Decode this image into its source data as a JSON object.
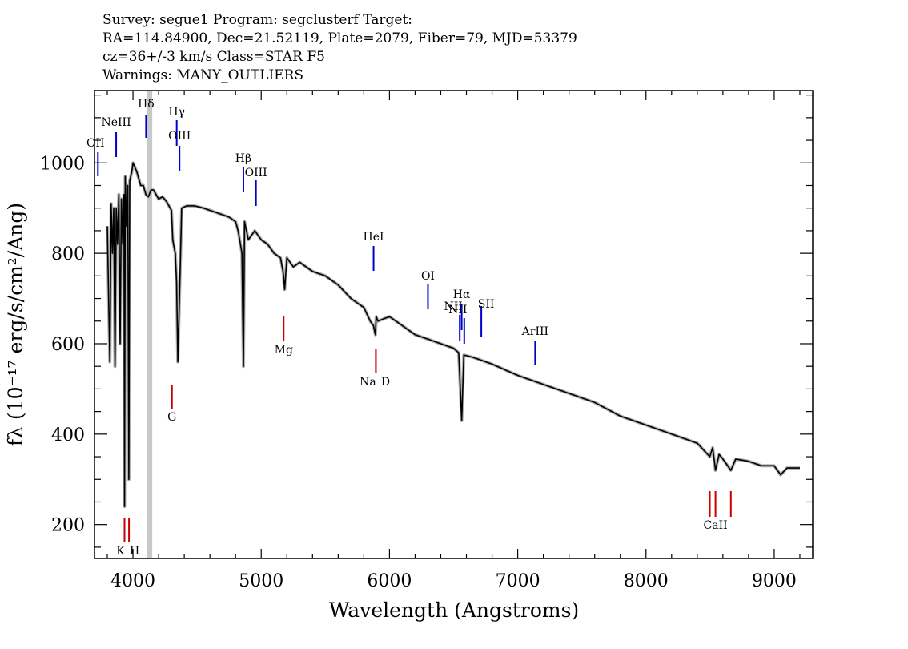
{
  "header": {
    "line1": "Survey: segue1  Program: segclusterf  Target:",
    "line2": "RA=114.84900, Dec=21.52119, Plate=2079, Fiber=79, MJD=53379",
    "line3": "cz=36+/-3  km/s  Class=STAR F5",
    "line4": "Warnings: MANY_OUTLIERS"
  },
  "chart_data": {
    "type": "line",
    "title": "",
    "xlabel": "Wavelength (Angstroms)",
    "ylabel": "fλ (10⁻¹⁷ erg/s/cm²/Ang)",
    "xlim": [
      3700,
      9300
    ],
    "ylim": [
      125,
      1160
    ],
    "x_ticks": [
      4000,
      5000,
      6000,
      7000,
      8000,
      9000
    ],
    "y_ticks": [
      200,
      400,
      600,
      800,
      1000
    ],
    "grid": false,
    "legend": "none",
    "colors": {
      "spectrum": "#000000",
      "error_band": "#b0b0b0",
      "emission_line": "#0000cc",
      "absorption_line": "#cc0000",
      "masked_region": "#c8c8c8"
    },
    "masked_region": [
      4110,
      4150
    ],
    "series": [
      {
        "x": [
          3800,
          3820,
          3830,
          3840,
          3850,
          3860,
          3870,
          3880,
          3890,
          3900,
          3910,
          3920,
          3930,
          3934,
          3940,
          3950,
          3960,
          3968,
          3975,
          3990,
          4000,
          4030,
          4060,
          4080,
          4101,
          4120,
          4140,
          4160,
          4180,
          4200,
          4230,
          4260,
          4300,
          4310,
          4330,
          4340,
          4350,
          4380,
          4420,
          4480,
          4550,
          4650,
          4750,
          4800,
          4820,
          4850,
          4861,
          4870,
          4900,
          4950,
          5000,
          5050,
          5100,
          5150,
          5170,
          5183,
          5200,
          5250,
          5300,
          5400,
          5500,
          5600,
          5700,
          5800,
          5850,
          5875,
          5890,
          5896,
          5910,
          6000,
          6100,
          6200,
          6300,
          6400,
          6500,
          6540,
          6563,
          6580,
          6650,
          6800,
          7000,
          7200,
          7400,
          7600,
          7800,
          8000,
          8200,
          8400,
          8498,
          8520,
          8542,
          8570,
          8600,
          8662,
          8700,
          8800,
          8900,
          9000,
          9050,
          9100,
          9200
        ],
        "y": [
          860,
          560,
          910,
          800,
          900,
          550,
          900,
          820,
          930,
          600,
          920,
          820,
          930,
          240,
          970,
          860,
          950,
          300,
          960,
          980,
          1000,
          980,
          950,
          950,
          930,
          925,
          940,
          940,
          930,
          920,
          925,
          915,
          895,
          830,
          800,
          735,
          560,
          900,
          905,
          905,
          900,
          890,
          880,
          870,
          850,
          800,
          550,
          870,
          830,
          850,
          830,
          820,
          800,
          790,
          760,
          720,
          790,
          770,
          780,
          760,
          750,
          730,
          700,
          680,
          650,
          640,
          620,
          660,
          650,
          660,
          640,
          620,
          610,
          600,
          590,
          580,
          430,
          575,
          570,
          555,
          530,
          510,
          490,
          470,
          440,
          420,
          400,
          380,
          350,
          370,
          320,
          355,
          345,
          320,
          345,
          340,
          330,
          330,
          310,
          325,
          325
        ]
      }
    ],
    "line_labels": [
      {
        "label": "OII",
        "x": 3727,
        "color": "blue"
      },
      {
        "label": "NeIII",
        "x": 3869,
        "color": "blue"
      },
      {
        "label": "Hδ",
        "x": 4102,
        "color": "blue"
      },
      {
        "label": "Hγ",
        "x": 4341,
        "color": "blue"
      },
      {
        "label": "OIII",
        "x": 4363,
        "color": "blue"
      },
      {
        "label": "Hβ",
        "x": 4861,
        "color": "blue"
      },
      {
        "label": "OIII",
        "x": 4959,
        "color": "blue"
      },
      {
        "label": "HeI",
        "x": 5876,
        "color": "blue"
      },
      {
        "label": "OI",
        "x": 6300,
        "color": "blue"
      },
      {
        "label": "NII",
        "x": 6548,
        "color": "blue"
      },
      {
        "label": "Hα",
        "x": 6563,
        "color": "blue"
      },
      {
        "label": "NII",
        "x": 6583,
        "color": "blue"
      },
      {
        "label": "SII",
        "x": 6716,
        "color": "blue"
      },
      {
        "label": "ArIII",
        "x": 7136,
        "color": "blue"
      },
      {
        "label": "K",
        "x": 3934,
        "color": "red"
      },
      {
        "label": "H",
        "x": 3969,
        "color": "red"
      },
      {
        "label": "G",
        "x": 4304,
        "color": "red"
      },
      {
        "label": "Mg",
        "x": 5175,
        "color": "red"
      },
      {
        "label": "Na",
        "x": 5894,
        "color": "red"
      },
      {
        "label": "D",
        "x": 5894,
        "color": "red"
      },
      {
        "label": "CaII",
        "x": 8542,
        "color": "red"
      }
    ]
  }
}
